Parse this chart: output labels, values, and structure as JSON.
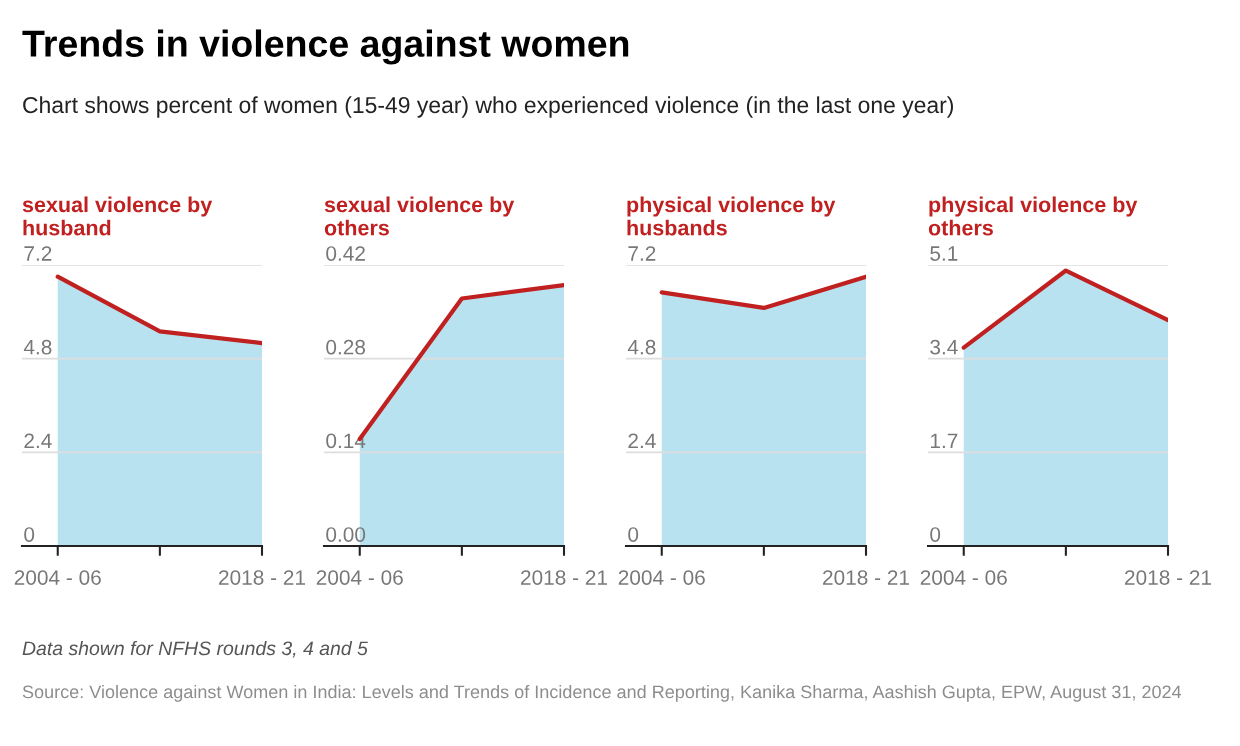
{
  "chart_data": [
    {
      "type": "other",
      "title": "Trends in violence against women",
      "subtitle": "Chart shows percent of women (15-49 year) who experienced violence (in the last one year)",
      "annotations": [
        "Data shown for NFHS rounds 3, 4 and 5",
        "Source: Violence against Women in India: Levels and Trends of Incidence and Reporting, Kanika Sharma, Aashish Gupta, EPW, August 31, 2024"
      ]
    },
    {
      "type": "area",
      "title": "sexual violence by\nhusband",
      "categories": [
        "2004 - 06",
        null,
        "2018 - 21"
      ],
      "ylim": [
        0,
        7.2
      ],
      "yticks": [
        0,
        2.4,
        4.8,
        7.2
      ],
      "grid": "y",
      "series": [
        {
          "type": "area",
          "color": "#b9e2f0",
          "values": [
            6.9,
            5.5,
            5.2
          ]
        },
        {
          "type": "line",
          "color": "#c0201f",
          "values": [
            6.9,
            5.5,
            5.2
          ]
        }
      ]
    },
    {
      "type": "area",
      "title": "sexual violence by\nothers",
      "categories": [
        "2004 - 06",
        null,
        "2018 - 21"
      ],
      "ylim": [
        0,
        0.42
      ],
      "yticks": [
        {
          "value": 0,
          "label": "0.00"
        },
        0.14,
        0.28,
        0.42
      ],
      "grid": "y",
      "series": [
        {
          "type": "area",
          "color": "#b9e2f0",
          "values": [
            0.16,
            0.37,
            0.39
          ]
        },
        {
          "type": "line",
          "color": "#c0201f",
          "values": [
            0.16,
            0.37,
            0.39
          ]
        }
      ]
    },
    {
      "type": "area",
      "title": "physical violence by\nhusbands",
      "categories": [
        "2004 - 06",
        null,
        "2018 - 21"
      ],
      "ylim": [
        0,
        7.2
      ],
      "yticks": [
        0,
        2.4,
        4.8,
        7.2
      ],
      "grid": "y",
      "series": [
        {
          "type": "area",
          "color": "#b9e2f0",
          "values": [
            6.5,
            6.1,
            6.9
          ]
        },
        {
          "type": "line",
          "color": "#c0201f",
          "values": [
            6.5,
            6.1,
            6.9
          ]
        }
      ]
    },
    {
      "type": "area",
      "title": "physical violence by\nothers",
      "categories": [
        "2004 - 06",
        null,
        "2018 - 21"
      ],
      "ylim": [
        0,
        5.1
      ],
      "yticks": [
        0,
        1.7,
        3.4,
        5.1
      ],
      "grid": "y",
      "series": [
        {
          "type": "area",
          "color": "#b9e2f0",
          "values": [
            3.6,
            5.0,
            4.1
          ]
        },
        {
          "type": "line",
          "color": "#c0201f",
          "values": [
            3.6,
            5.0,
            4.1
          ]
        }
      ]
    }
  ]
}
